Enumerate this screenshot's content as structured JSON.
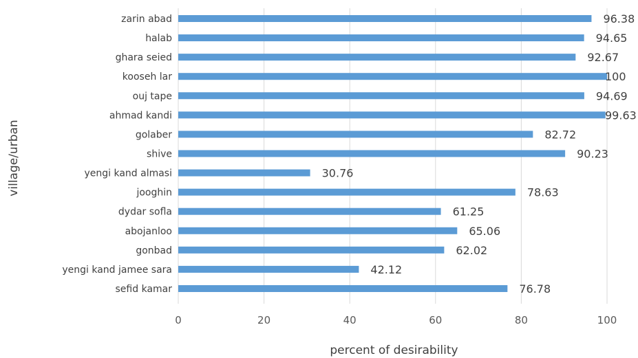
{
  "chart_data": {
    "type": "bar",
    "orientation": "horizontal",
    "categories": [
      "zarin abad",
      "halab",
      "ghara seied",
      "kooseh lar",
      "ouj tape",
      "ahmad kandi",
      "golaber",
      "shive",
      "yengi kand almasi",
      "jooghin",
      "dydar sofla",
      "abojanloo",
      "gonbad",
      "yengi kand  jamee sara",
      "sefid kamar"
    ],
    "values": [
      96.38,
      94.65,
      92.67,
      100,
      94.69,
      99.63,
      82.72,
      90.23,
      30.76,
      78.63,
      61.25,
      65.06,
      62.02,
      42.12,
      76.78
    ],
    "data_labels": [
      "96.38",
      "94.65",
      "92.67",
      "100",
      "94.69",
      "99.63",
      "82.72",
      "90.23",
      "30.76",
      "78.63",
      "61.25",
      "65.06",
      "62.02",
      "42.12",
      "76.78"
    ],
    "xticks": [
      0,
      20,
      40,
      60,
      80,
      100
    ],
    "xlim": [
      0,
      100
    ],
    "xlabel": "percent of desirability",
    "ylabel": "village/urban",
    "grid": "vertical",
    "bar_color": "#5b9bd5",
    "grid_color": "#d9d9d9"
  }
}
